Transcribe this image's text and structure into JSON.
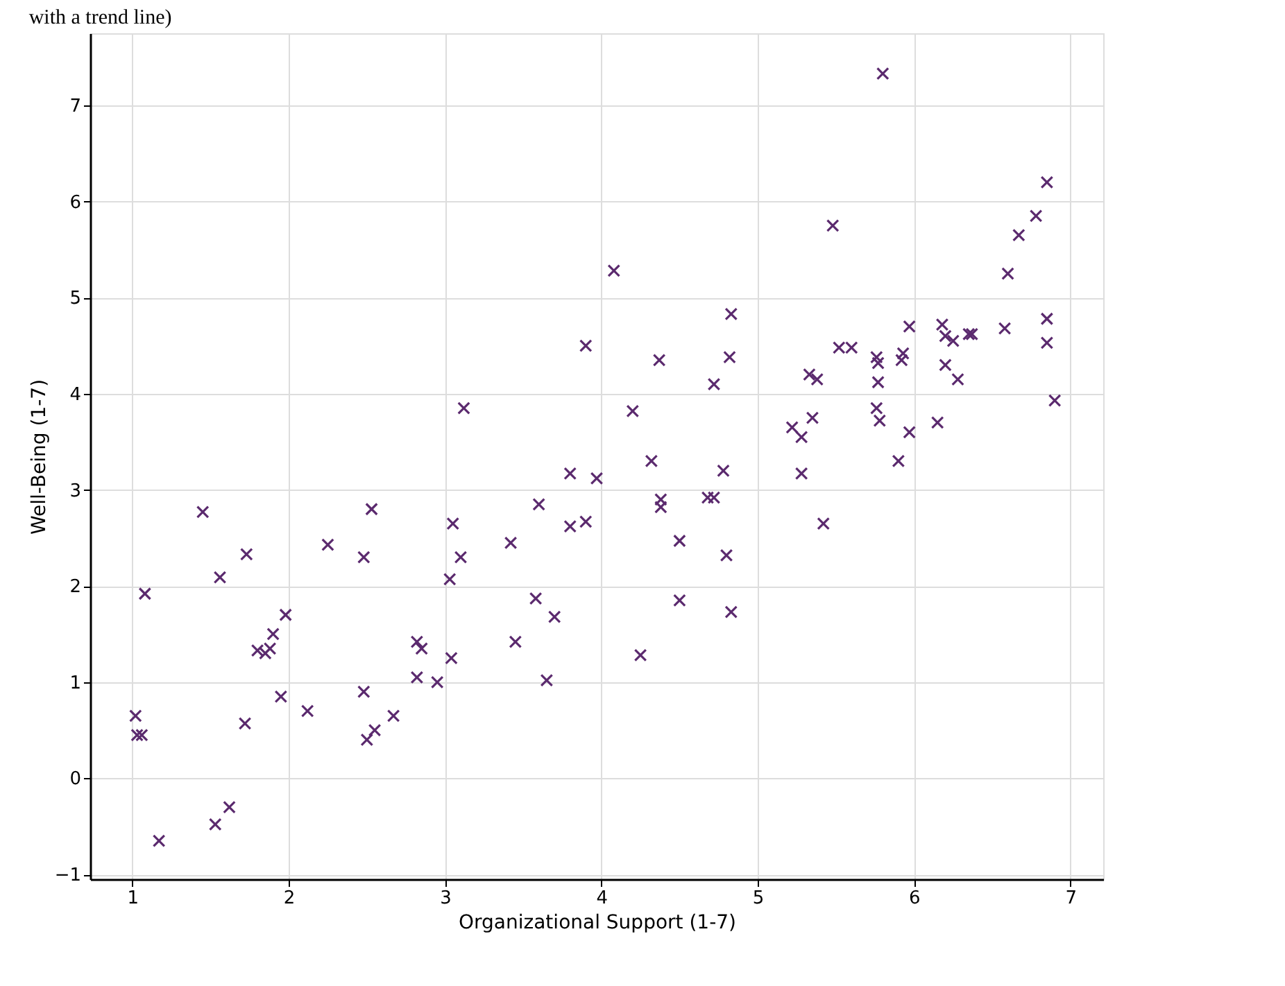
{
  "chart_data": {
    "type": "scatter",
    "title": "with a trend line)",
    "xlabel": "Organizational Support (1-7)",
    "ylabel": "Well-Being (1-7)",
    "xlim": [
      0.73,
      7.21
    ],
    "ylim": [
      -1.05,
      7.75
    ],
    "xticks": [
      1,
      2,
      3,
      4,
      5,
      6,
      7
    ],
    "yticks": [
      -1,
      0,
      1,
      2,
      3,
      4,
      5,
      6,
      7
    ],
    "grid": true,
    "marker": "cross",
    "series": [
      {
        "color": "#5b2a6e",
        "x": [
          1.02,
          1.03,
          1.06,
          1.08,
          1.17,
          1.45,
          1.56,
          1.53,
          1.62,
          1.73,
          1.72,
          1.8,
          1.85,
          1.88,
          1.9,
          1.98,
          1.95,
          2.12,
          2.25,
          2.48,
          2.48,
          2.5,
          2.53,
          2.55,
          2.67,
          2.82,
          2.85,
          2.82,
          2.95,
          3.03,
          3.05,
          3.1,
          3.04,
          3.12,
          3.42,
          3.45,
          3.58,
          3.6,
          3.65,
          3.7,
          3.8,
          3.8,
          3.9,
          3.9,
          3.97,
          4.08,
          4.2,
          4.25,
          4.32,
          4.37,
          4.38,
          4.38,
          4.5,
          4.5,
          4.68,
          4.72,
          4.72,
          4.78,
          4.8,
          4.82,
          4.83,
          4.83,
          5.22,
          5.28,
          5.28,
          5.33,
          5.35,
          5.38,
          5.42,
          5.48,
          5.52,
          5.6,
          5.76,
          5.77,
          5.77,
          5.76,
          5.78,
          5.8,
          5.9,
          5.92,
          5.93,
          5.97,
          5.97,
          6.15,
          6.18,
          6.2,
          6.2,
          6.25,
          6.28,
          6.35,
          6.37,
          6.58,
          6.6,
          6.67,
          6.78,
          6.85,
          6.85,
          6.85,
          6.9
        ],
        "values": [
          0.65,
          0.45,
          0.45,
          1.92,
          -0.65,
          2.77,
          2.09,
          -0.48,
          -0.3,
          2.33,
          0.57,
          1.33,
          1.3,
          1.35,
          1.5,
          1.7,
          0.85,
          0.7,
          2.43,
          2.3,
          0.9,
          0.4,
          2.8,
          0.5,
          0.65,
          1.42,
          1.35,
          1.05,
          1.0,
          2.07,
          2.65,
          2.3,
          1.25,
          3.85,
          2.45,
          1.42,
          1.87,
          2.85,
          1.02,
          1.68,
          3.17,
          2.62,
          2.67,
          4.5,
          3.12,
          5.28,
          3.82,
          1.28,
          3.3,
          4.35,
          2.9,
          2.82,
          2.47,
          1.85,
          2.92,
          2.92,
          4.1,
          3.2,
          2.32,
          4.38,
          4.83,
          1.73,
          3.65,
          3.55,
          3.17,
          4.2,
          3.75,
          4.15,
          2.65,
          5.75,
          4.48,
          4.48,
          4.38,
          4.32,
          4.12,
          3.85,
          3.72,
          7.33,
          3.3,
          4.35,
          4.42,
          3.6,
          4.7,
          3.7,
          4.72,
          4.6,
          4.3,
          4.55,
          4.15,
          4.62,
          4.62,
          4.68,
          5.25,
          5.65,
          5.85,
          6.2,
          4.78,
          4.53,
          3.93
        ]
      }
    ]
  }
}
